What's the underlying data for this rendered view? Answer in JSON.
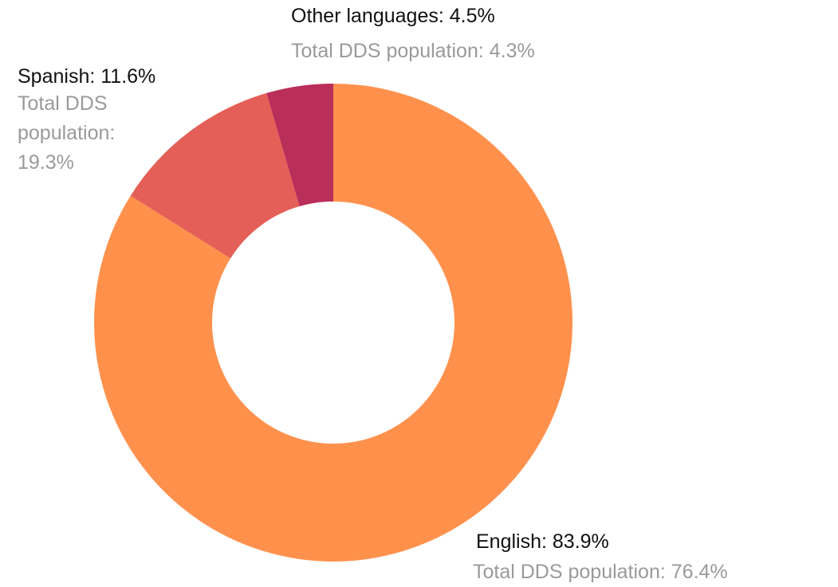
{
  "chart_data": {
    "type": "donut",
    "values": [
      83.9,
      11.6,
      4.5
    ],
    "value_labels": [
      "English: 83.9%",
      "Spanish: 11.6%",
      "Other languages: 4.5%"
    ],
    "colors": [
      "#ff914d",
      "#e35f57",
      "#ba2e5a"
    ],
    "total_dds_population": {
      "values": [
        76.4,
        19.3,
        4.3
      ],
      "value_labels": [
        "Total DDS population: 76.4%",
        "Total DDS population: 19.3%",
        "Total DDS population: 4.3%"
      ]
    }
  }
}
